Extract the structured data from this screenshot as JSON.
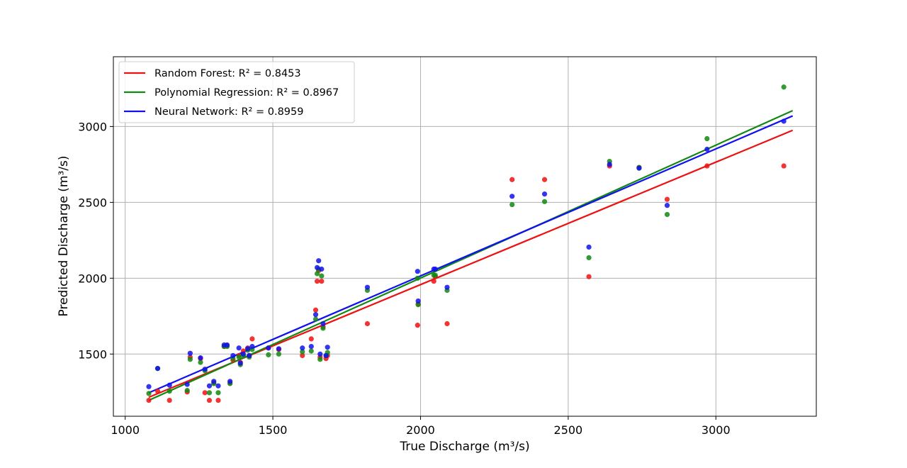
{
  "chart_data": {
    "type": "scatter",
    "xlabel": "True Discharge (m³/s)",
    "ylabel": "Predicted Discharge (m³/s)",
    "xlim": [
      960,
      3340
    ],
    "ylim": [
      1090,
      3460
    ],
    "xticks": [
      1000,
      1500,
      2000,
      2500,
      3000
    ],
    "yticks": [
      1500,
      2000,
      2500,
      3000
    ],
    "grid": true,
    "legend_position": "top-left",
    "x": [
      1080,
      1110,
      1150,
      1210,
      1220,
      1255,
      1270,
      1285,
      1300,
      1315,
      1335,
      1345,
      1355,
      1365,
      1385,
      1390,
      1400,
      1415,
      1420,
      1430,
      1485,
      1520,
      1600,
      1630,
      1645,
      1650,
      1655,
      1660,
      1665,
      1670,
      1680,
      1685,
      1820,
      1990,
      1992,
      2045,
      2050,
      2090,
      2310,
      2420,
      2570,
      2640,
      2740,
      2835,
      2970,
      3230
    ],
    "series": [
      {
        "name": "Random Forest",
        "color": "#ee1111",
        "r2_label": "Random Forest: R² = 0.8453",
        "fit": [
          1215,
          2975
        ],
        "values": [
          1195,
          1255,
          1195,
          1250,
          1480,
          1470,
          1245,
          1195,
          1310,
          1195,
          1550,
          1555,
          1310,
          1460,
          1490,
          1445,
          1520,
          1540,
          1490,
          1600,
          1540,
          1530,
          1490,
          1600,
          1790,
          1980,
          2050,
          1480,
          1980,
          1680,
          1470,
          1490,
          1700,
          1690,
          1830,
          1980,
          2010,
          1700,
          2650,
          2650,
          2010,
          2740,
          2730,
          2520,
          2740,
          2740
        ]
      },
      {
        "name": "Polynomial Regression",
        "color": "#118811",
        "r2_label": "Polynomial Regression: R² = 0.8967",
        "fit": [
          1195,
          3105
        ],
        "values": [
          1240,
          1405,
          1255,
          1260,
          1465,
          1445,
          1390,
          1245,
          1305,
          1245,
          1550,
          1550,
          1305,
          1470,
          1480,
          1430,
          1490,
          1525,
          1480,
          1530,
          1495,
          1500,
          1515,
          1520,
          1730,
          2030,
          2060,
          1465,
          2015,
          1670,
          1490,
          1510,
          1920,
          2000,
          1825,
          2020,
          2020,
          1920,
          2485,
          2505,
          2135,
          2770,
          2730,
          2420,
          2920,
          3260
        ]
      },
      {
        "name": "Neural Network",
        "color": "#1111ee",
        "r2_label": "Neural Network: R² = 0.8959",
        "fit": [
          1245,
          3070
        ],
        "values": [
          1285,
          1405,
          1295,
          1300,
          1505,
          1475,
          1400,
          1290,
          1320,
          1290,
          1560,
          1560,
          1320,
          1490,
          1540,
          1440,
          1500,
          1535,
          1490,
          1550,
          1540,
          1535,
          1540,
          1550,
          1760,
          2070,
          2115,
          1500,
          2060,
          1700,
          1490,
          1545,
          1940,
          2045,
          1850,
          2060,
          2060,
          1940,
          2540,
          2555,
          2205,
          2750,
          2725,
          2480,
          2850,
          3035
        ]
      }
    ]
  }
}
